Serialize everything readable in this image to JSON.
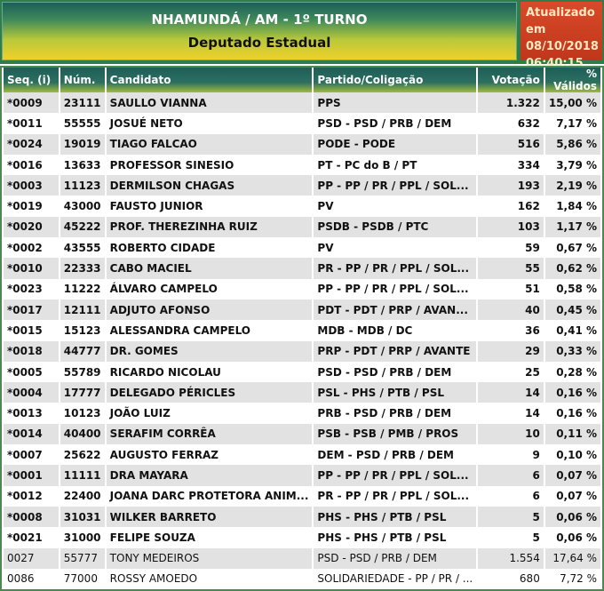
{
  "header": {
    "title": "NHAMUNDÁ / AM - 1º TURNO",
    "subtitle": "Deputado Estadual",
    "updated_label": "Atualizado em",
    "updated_date": "08/10/2018",
    "updated_time": "06:40:15"
  },
  "colors": {
    "banner_top": "#1d5e5a",
    "banner_bottom": "#f0d02a",
    "updated_bg": "#d84a28",
    "row_alt": "#e2e2e2"
  },
  "columns": [
    "Seq.   (i)",
    "Núm.",
    "Candidato",
    "Partido/Coligação",
    "Votação",
    "% Válidos"
  ],
  "rows": [
    {
      "seq": "*0009",
      "num": "23111",
      "name": "SAULLO VIANNA",
      "party": "PPS",
      "votes": "1.322",
      "pct": "15,00 %"
    },
    {
      "seq": "*0011",
      "num": "55555",
      "name": "JOSUÉ NETO",
      "party": "PSD - PSD / PRB / DEM",
      "votes": "632",
      "pct": "7,17 %"
    },
    {
      "seq": "*0024",
      "num": "19019",
      "name": "TIAGO FALCAO",
      "party": "PODE - PODE",
      "votes": "516",
      "pct": "5,86 %"
    },
    {
      "seq": "*0016",
      "num": "13633",
      "name": "PROFESSOR SINESIO",
      "party": "PT - PC do B / PT",
      "votes": "334",
      "pct": "3,79 %"
    },
    {
      "seq": "*0003",
      "num": "11123",
      "name": "DERMILSON CHAGAS",
      "party": "PP - PP / PR / PPL / SOL...",
      "votes": "193",
      "pct": "2,19 %"
    },
    {
      "seq": "*0019",
      "num": "43000",
      "name": "FAUSTO JUNIOR",
      "party": "PV",
      "votes": "162",
      "pct": "1,84 %"
    },
    {
      "seq": "*0020",
      "num": "45222",
      "name": "PROF. THEREZINHA RUIZ",
      "party": "PSDB - PSDB / PTC",
      "votes": "103",
      "pct": "1,17 %"
    },
    {
      "seq": "*0002",
      "num": "43555",
      "name": "ROBERTO CIDADE",
      "party": "PV",
      "votes": "59",
      "pct": "0,67 %"
    },
    {
      "seq": "*0010",
      "num": "22333",
      "name": "CABO MACIEL",
      "party": "PR - PP / PR / PPL / SOL...",
      "votes": "55",
      "pct": "0,62 %"
    },
    {
      "seq": "*0023",
      "num": "11222",
      "name": "ÁLVARO CAMPELO",
      "party": "PP - PP / PR / PPL / SOL...",
      "votes": "51",
      "pct": "0,58 %"
    },
    {
      "seq": "*0017",
      "num": "12111",
      "name": "ADJUTO AFONSO",
      "party": "PDT - PDT / PRP / AVAN...",
      "votes": "40",
      "pct": "0,45 %"
    },
    {
      "seq": "*0015",
      "num": "15123",
      "name": "ALESSANDRA CAMPELO",
      "party": "MDB - MDB / DC",
      "votes": "36",
      "pct": "0,41 %"
    },
    {
      "seq": "*0018",
      "num": "44777",
      "name": "DR. GOMES",
      "party": "PRP - PDT / PRP / AVANTE",
      "votes": "29",
      "pct": "0,33 %"
    },
    {
      "seq": "*0005",
      "num": "55789",
      "name": "RICARDO NICOLAU",
      "party": "PSD - PSD / PRB / DEM",
      "votes": "25",
      "pct": "0,28 %"
    },
    {
      "seq": "*0004",
      "num": "17777",
      "name": "DELEGADO PÉRICLES",
      "party": "PSL - PHS / PTB / PSL",
      "votes": "14",
      "pct": "0,16 %"
    },
    {
      "seq": "*0013",
      "num": "10123",
      "name": "JOÃO LUIZ",
      "party": "PRB - PSD / PRB / DEM",
      "votes": "14",
      "pct": "0,16 %"
    },
    {
      "seq": "*0014",
      "num": "40400",
      "name": "SERAFIM CORRÊA",
      "party": "PSB - PSB / PMB / PROS",
      "votes": "10",
      "pct": "0,11 %"
    },
    {
      "seq": "*0007",
      "num": "25622",
      "name": "AUGUSTO FERRAZ",
      "party": "DEM - PSD / PRB / DEM",
      "votes": "9",
      "pct": "0,10 %"
    },
    {
      "seq": "*0001",
      "num": "11111",
      "name": "DRA MAYARA",
      "party": "PP - PP / PR / PPL / SOL...",
      "votes": "6",
      "pct": "0,07 %"
    },
    {
      "seq": "*0012",
      "num": "22400",
      "name": "JOANA DARC PROTETORA ANIM...",
      "party": "PR - PP / PR / PPL / SOL...",
      "votes": "6",
      "pct": "0,07 %"
    },
    {
      "seq": "*0008",
      "num": "31031",
      "name": "WILKER BARRETO",
      "party": "PHS - PHS / PTB / PSL",
      "votes": "5",
      "pct": "0,06 %"
    },
    {
      "seq": "*0021",
      "num": "31000",
      "name": "FELIPE SOUZA",
      "party": "PHS - PHS / PTB / PSL",
      "votes": "5",
      "pct": "0,06 %"
    },
    {
      "seq": "0027",
      "num": "55777",
      "name": "TONY MEDEIROS",
      "party": "PSD - PSD / PRB / DEM",
      "votes": "1.554",
      "pct": "17,64 %"
    },
    {
      "seq": "0086",
      "num": "77000",
      "name": "ROSSY AMOEDO",
      "party": "SOLIDARIEDADE - PP / PR / ...",
      "votes": "680",
      "pct": "7,72 %"
    }
  ]
}
